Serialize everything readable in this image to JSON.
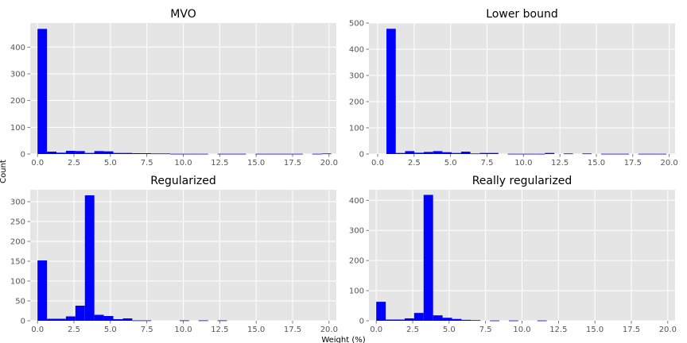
{
  "figure": {
    "xlabel": "Weight (%)",
    "ylabel": "Count"
  },
  "chart_data": [
    {
      "type": "bar",
      "title": "MVO",
      "bar_color": "#0000ff",
      "panel_background": "#e5e5e5",
      "grid": true,
      "bin_width": 0.65,
      "bin_starts": [
        0.0,
        0.65,
        1.3,
        1.95,
        2.6,
        3.25,
        3.9,
        4.55,
        5.2,
        5.85,
        6.5,
        7.15,
        7.8,
        8.45,
        9.1,
        9.75,
        10.4,
        11.05,
        11.7,
        12.35,
        13.0,
        13.65,
        14.3,
        14.95,
        15.6,
        16.25,
        16.9,
        17.55,
        18.2,
        18.85,
        19.5
      ],
      "values": [
        468,
        9,
        5,
        12,
        11,
        4,
        11,
        10,
        4,
        4,
        3,
        3,
        2,
        2,
        1,
        1,
        1,
        1,
        0,
        1,
        1,
        1,
        0,
        1,
        1,
        1,
        1,
        1,
        0,
        1,
        2
      ],
      "xlim": [
        -0.5,
        20.5
      ],
      "ylim": [
        0,
        490
      ],
      "xticks": [
        0.0,
        2.5,
        5.0,
        7.5,
        10.0,
        12.5,
        15.0,
        17.5,
        20.0
      ],
      "yticks": [
        0,
        100,
        200,
        300,
        400
      ]
    },
    {
      "type": "bar",
      "title": "Lower bound",
      "bar_color": "#0000ff",
      "panel_background": "#e5e5e5",
      "grid": true,
      "bin_width": 0.64,
      "bin_starts": [
        0.6,
        1.24,
        1.88,
        2.52,
        3.16,
        3.8,
        4.44,
        5.08,
        5.72,
        6.36,
        7.0,
        7.64,
        8.28,
        8.92,
        9.56,
        10.2,
        10.84,
        11.48,
        12.12,
        12.76,
        13.4,
        14.04,
        14.68,
        15.32,
        15.96,
        16.6,
        17.24,
        17.88,
        18.52,
        19.16
      ],
      "values": [
        478,
        4,
        11,
        5,
        8,
        11,
        7,
        4,
        9,
        2,
        4,
        4,
        0,
        1,
        1,
        1,
        1,
        4,
        0,
        2,
        0,
        2,
        0,
        1,
        1,
        1,
        0,
        1,
        1,
        1
      ],
      "xlim": [
        -0.6,
        20.4
      ],
      "ylim": [
        0,
        500
      ],
      "xticks": [
        0.0,
        2.5,
        5.0,
        7.5,
        10.0,
        12.5,
        15.0,
        17.5,
        20.0
      ],
      "yticks": [
        0,
        100,
        200,
        300,
        400,
        500
      ]
    },
    {
      "type": "bar",
      "title": "Regularized",
      "bar_color": "#0000ff",
      "panel_background": "#e5e5e5",
      "grid": true,
      "bin_width": 0.65,
      "bin_starts": [
        0.0,
        0.65,
        1.3,
        1.95,
        2.6,
        3.25,
        3.9,
        4.55,
        5.2,
        5.85,
        6.5,
        7.15,
        7.8,
        8.45,
        9.1,
        9.75,
        10.4,
        11.05,
        11.7,
        12.35,
        13.0
      ],
      "values": [
        152,
        5,
        5,
        11,
        38,
        316,
        15,
        12,
        4,
        6,
        1,
        1,
        0,
        0,
        0,
        1,
        0,
        1,
        0,
        1,
        0
      ],
      "xlim": [
        -0.5,
        20.5
      ],
      "ylim": [
        0,
        330
      ],
      "xticks": [
        0.0,
        2.5,
        5.0,
        7.5,
        10.0,
        12.5,
        15.0,
        17.5,
        20.0
      ],
      "yticks": [
        0,
        50,
        100,
        150,
        200,
        250,
        300
      ]
    },
    {
      "type": "bar",
      "title": "Really regularized",
      "bar_color": "#0000ff",
      "panel_background": "#e5e5e5",
      "grid": true,
      "bin_width": 0.65,
      "bin_starts": [
        0.0,
        0.65,
        1.3,
        1.95,
        2.6,
        3.25,
        3.9,
        4.55,
        5.2,
        5.85,
        6.5,
        7.15,
        7.8,
        8.45,
        9.1,
        9.75,
        10.4,
        11.05
      ],
      "values": [
        63,
        4,
        4,
        8,
        26,
        418,
        18,
        10,
        6,
        3,
        2,
        0,
        1,
        0,
        1,
        0,
        0,
        1
      ],
      "xlim": [
        -0.5,
        20.5
      ],
      "ylim": [
        0,
        435
      ],
      "xticks": [
        0.0,
        2.5,
        5.0,
        7.5,
        10.0,
        12.5,
        15.0,
        17.5,
        20.0
      ],
      "yticks": [
        0,
        100,
        200,
        300,
        400
      ]
    }
  ]
}
